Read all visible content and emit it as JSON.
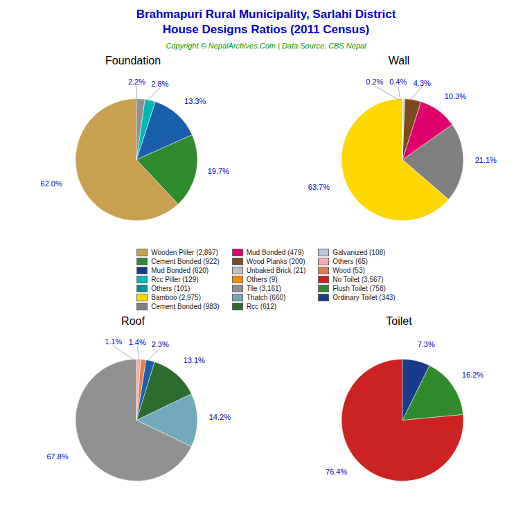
{
  "title": "Brahmapuri Rural Municipality, Sarlahi District\nHouse Designs Ratios (2011 Census)",
  "subtitle": "Copyright © NepalArchives.Com | Data Source: CBS Nepal",
  "legend": "center",
  "series": [
    {
      "name": "Wooden Piller (2,897)",
      "color": "#C8A050"
    },
    {
      "name": "Cement Bonded (922)",
      "color": "#2E8B2E"
    },
    {
      "name": "Mud Bonded (620)",
      "color": "#1A3A8B"
    },
    {
      "name": "Rcc Piller (129)",
      "color": "#00B8B8"
    },
    {
      "name": "Others (101)",
      "color": "#009090"
    },
    {
      "name": "Bamboo (2,975)",
      "color": "#FFD700"
    },
    {
      "name": "Cement Bonded (983)",
      "color": "#808080"
    },
    {
      "name": "Mud Bonded (479)",
      "color": "#E0006B"
    },
    {
      "name": "Wood Planks (200)",
      "color": "#7B4A1E"
    },
    {
      "name": "Unbaked Brick (21)",
      "color": "#C0C0C0"
    },
    {
      "name": "Others (9)",
      "color": "#FF8C00"
    },
    {
      "name": "Tile (3,161)",
      "color": "#909090"
    },
    {
      "name": "Thatch (660)",
      "color": "#70AABA"
    },
    {
      "name": "Rcc (612)",
      "color": "#2E6B2E"
    },
    {
      "name": "Galvanized (108)",
      "color": "#B8C8D8"
    },
    {
      "name": "Others (65)",
      "color": "#FFAAAA"
    },
    {
      "name": "Wood (53)",
      "color": "#E08050"
    },
    {
      "name": "No Toilet (3,567)",
      "color": "#CC2222"
    },
    {
      "name": "Flush Toilet (758)",
      "color": "#2E8B2E"
    },
    {
      "name": "Ordinary Toilet (343)",
      "color": "#1A3A8B"
    }
  ],
  "chart_data": [
    {
      "type": "pie",
      "title": "Foundation",
      "values": [
        62.0,
        19.7,
        13.3,
        2.8,
        2.2
      ],
      "value_labels": [
        "62.0%",
        "19.7%",
        "13.3%",
        "2.8%",
        "2.2%"
      ],
      "colors": [
        "#C8A050",
        "#2E8B2E",
        "#1A5FAB",
        "#00B8B8",
        "#909090"
      ]
    },
    {
      "type": "pie",
      "title": "Wall",
      "values": [
        63.7,
        21.1,
        10.3,
        4.3,
        0.4,
        0.2
      ],
      "value_labels": [
        "63.7%",
        "21.1%",
        "10.3%",
        "4.3%",
        "0.4%",
        "0.2%"
      ],
      "colors": [
        "#FFD700",
        "#808080",
        "#E0006B",
        "#7B4A1E",
        "#B8C8D8",
        "#C8D8E8"
      ]
    },
    {
      "type": "pie",
      "title": "Roof",
      "values": [
        67.8,
        14.2,
        13.1,
        2.3,
        1.4,
        1.1
      ],
      "value_labels": [
        "67.8%",
        "14.2%",
        "13.1%",
        "2.3%",
        "1.4%",
        "1.1%"
      ],
      "colors": [
        "#909090",
        "#70AABA",
        "#2E6B2E",
        "#1A5FAB",
        "#E08050",
        "#FFAAAA"
      ]
    },
    {
      "type": "pie",
      "title": "Toilet",
      "values": [
        76.4,
        16.2,
        7.3
      ],
      "value_labels": [
        "76.4%",
        "16.2%",
        "7.3%"
      ],
      "colors": [
        "#CC2222",
        "#2E8B2E",
        "#1A3A8B"
      ]
    }
  ]
}
